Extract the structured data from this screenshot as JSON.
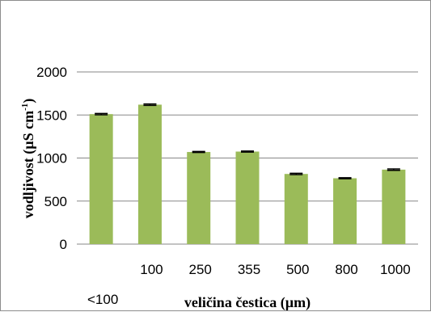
{
  "chart_data": {
    "type": "bar",
    "categories": [
      "<100",
      "100",
      "250",
      "355",
      "500",
      "800",
      "1000"
    ],
    "values": [
      1510,
      1620,
      1070,
      1075,
      815,
      765,
      865
    ],
    "errors": [
      8,
      8,
      6,
      6,
      8,
      6,
      8
    ],
    "xlabel": "veličina čestica (µm)",
    "ylabel": {
      "main": "vodljivost (µS cm",
      "sup": "-1",
      "close": ")"
    },
    "ylim": [
      0,
      2000
    ],
    "yticks": [
      0,
      500,
      1000,
      1500,
      2000
    ],
    "grid": true,
    "legend": "none",
    "bar_color": "#9bbb59",
    "error_color": "#000000",
    "grid_color": "#878787"
  }
}
